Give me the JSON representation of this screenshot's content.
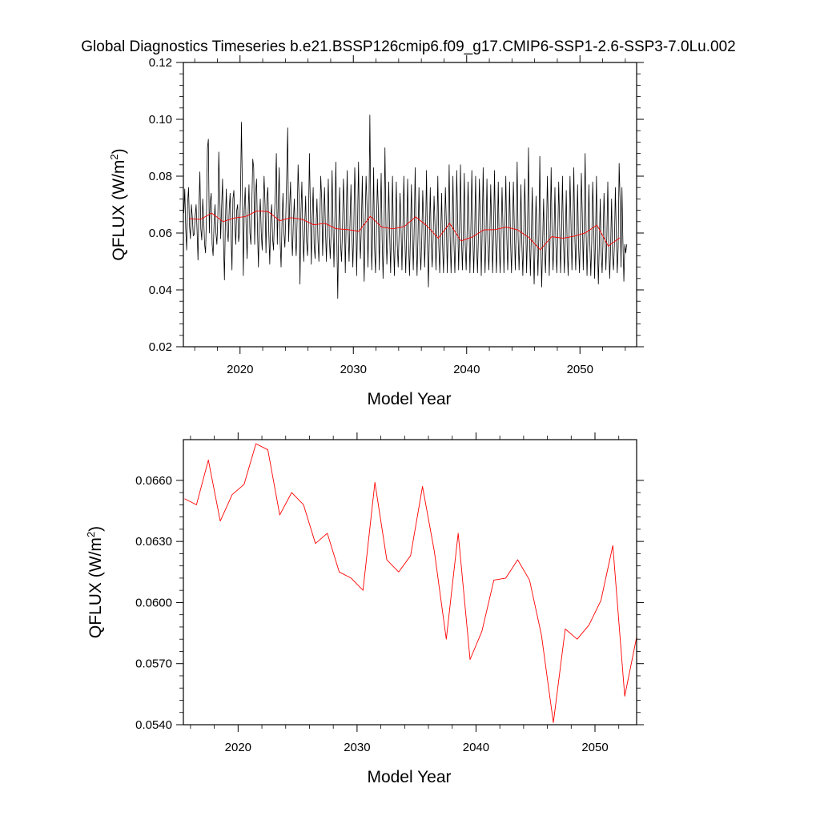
{
  "title": "Global Diagnostics Timeseries b.e21.BSSP126cmip6.f09_g17.CMIP6-SSP1-2.6-SSP3-7.0Lu.002",
  "colors": {
    "monthly": "#000000",
    "annual": "#ff0000",
    "axes": "#000000",
    "background": "#ffffff"
  },
  "chart_data": [
    {
      "type": "line",
      "xlabel": "Model Year",
      "ylabel": "QFLUX (W/m",
      "ylabel_superscript": "2",
      "ylabel_suffix": ")",
      "xlim": [
        2015,
        2055
      ],
      "ylim": [
        0.02,
        0.12
      ],
      "x_ticks": [
        2020,
        2030,
        2040,
        2050
      ],
      "x_tick_labels": [
        "2020",
        "2030",
        "2040",
        "2050"
      ],
      "y_ticks": [
        0.02,
        0.04,
        0.06,
        0.08,
        0.1,
        0.12
      ],
      "y_tick_labels": [
        "0.02",
        "0.04",
        "0.06",
        "0.08",
        "0.10",
        "0.12"
      ],
      "grid": false,
      "series": [
        {
          "color": "#000000",
          "x_start": 2015.04,
          "x_step": 0.0833333,
          "values": [
            0.067,
            0.0755,
            0.0615,
            0.054,
            0.0705,
            0.076,
            0.0625,
            0.058,
            0.07,
            0.0655,
            0.059,
            0.0595,
            0.066,
            0.07,
            0.061,
            0.0505,
            0.069,
            0.0815,
            0.0615,
            0.0575,
            0.072,
            0.065,
            0.056,
            0.053,
            0.067,
            0.09,
            0.093,
            0.06,
            0.071,
            0.074,
            0.056,
            0.052,
            0.063,
            0.07,
            0.06,
            0.056,
            0.065,
            0.0885,
            0.074,
            0.058,
            0.069,
            0.079,
            0.057,
            0.0435,
            0.064,
            0.0755,
            0.061,
            0.057,
            0.068,
            0.074,
            0.059,
            0.047,
            0.072,
            0.075,
            0.063,
            0.056,
            0.068,
            0.07,
            0.057,
            0.06,
            0.073,
            0.099,
            0.076,
            0.045,
            0.068,
            0.076,
            0.062,
            0.051,
            0.066,
            0.077,
            0.06,
            0.056,
            0.07,
            0.086,
            0.083,
            0.056,
            0.074,
            0.079,
            0.061,
            0.048,
            0.065,
            0.072,
            0.06,
            0.054,
            0.068,
            0.08,
            0.07,
            0.053,
            0.072,
            0.076,
            0.06,
            0.049,
            0.065,
            0.07,
            0.058,
            0.054,
            0.066,
            0.075,
            0.088,
            0.056,
            0.07,
            0.083,
            0.057,
            0.048,
            0.064,
            0.074,
            0.06,
            0.055,
            0.066,
            0.081,
            0.097,
            0.057,
            0.069,
            0.078,
            0.06,
            0.052,
            0.064,
            0.072,
            0.059,
            0.052,
            0.065,
            0.084,
            0.073,
            0.042,
            0.067,
            0.078,
            0.059,
            0.05,
            0.063,
            0.073,
            0.057,
            0.052,
            0.064,
            0.088,
            0.069,
            0.049,
            0.066,
            0.076,
            0.056,
            0.051,
            0.062,
            0.072,
            0.058,
            0.05,
            0.063,
            0.08,
            0.072,
            0.052,
            0.065,
            0.076,
            0.061,
            0.05,
            0.064,
            0.079,
            0.059,
            0.051,
            0.06,
            0.082,
            0.062,
            0.048,
            0.066,
            0.085,
            0.058,
            0.037,
            0.062,
            0.076,
            0.056,
            0.05,
            0.061,
            0.079,
            0.068,
            0.046,
            0.065,
            0.082,
            0.061,
            0.05,
            0.064,
            0.077,
            0.06,
            0.048,
            0.062,
            0.083,
            0.07,
            0.045,
            0.064,
            0.085,
            0.06,
            0.051,
            0.062,
            0.08,
            0.058,
            0.043,
            0.064,
            0.08,
            0.07,
            0.048,
            0.066,
            0.1015,
            0.067,
            0.047,
            0.06,
            0.083,
            0.055,
            0.046,
            0.062,
            0.079,
            0.068,
            0.047,
            0.065,
            0.081,
            0.058,
            0.044,
            0.06,
            0.09,
            0.064,
            0.049,
            0.06,
            0.078,
            0.06,
            0.046,
            0.063,
            0.08,
            0.057,
            0.045,
            0.061,
            0.078,
            0.056,
            0.048,
            0.06,
            0.074,
            0.062,
            0.047,
            0.062,
            0.08,
            0.059,
            0.046,
            0.06,
            0.079,
            0.056,
            0.045,
            0.059,
            0.077,
            0.06,
            0.047,
            0.062,
            0.083,
            0.058,
            0.045,
            0.059,
            0.076,
            0.055,
            0.047,
            0.058,
            0.075,
            0.064,
            0.048,
            0.06,
            0.082,
            0.057,
            0.041,
            0.059,
            0.076,
            0.056,
            0.048,
            0.058,
            0.073,
            0.063,
            0.047,
            0.06,
            0.08,
            0.056,
            0.046,
            0.059,
            0.074,
            0.056,
            0.046,
            0.059,
            0.076,
            0.064,
            0.046,
            0.061,
            0.084,
            0.059,
            0.046,
            0.059,
            0.08,
            0.057,
            0.046,
            0.059,
            0.082,
            0.065,
            0.047,
            0.062,
            0.084,
            0.059,
            0.047,
            0.06,
            0.081,
            0.056,
            0.047,
            0.06,
            0.078,
            0.063,
            0.046,
            0.062,
            0.082,
            0.059,
            0.046,
            0.06,
            0.08,
            0.056,
            0.046,
            0.059,
            0.079,
            0.064,
            0.045,
            0.061,
            0.083,
            0.06,
            0.046,
            0.059,
            0.079,
            0.056,
            0.047,
            0.058,
            0.077,
            0.062,
            0.046,
            0.06,
            0.082,
            0.06,
            0.046,
            0.058,
            0.078,
            0.056,
            0.046,
            0.059,
            0.076,
            0.062,
            0.046,
            0.061,
            0.08,
            0.059,
            0.047,
            0.059,
            0.078,
            0.057,
            0.046,
            0.059,
            0.078,
            0.062,
            0.047,
            0.061,
            0.085,
            0.059,
            0.047,
            0.059,
            0.077,
            0.056,
            0.045,
            0.06,
            0.079,
            0.064,
            0.046,
            0.061,
            0.09,
            0.06,
            0.045,
            0.059,
            0.076,
            0.056,
            0.042,
            0.057,
            0.073,
            0.06,
            0.045,
            0.059,
            0.087,
            0.056,
            0.041,
            0.057,
            0.072,
            0.055,
            0.046,
            0.059,
            0.08,
            0.064,
            0.045,
            0.06,
            0.083,
            0.059,
            0.047,
            0.058,
            0.076,
            0.056,
            0.046,
            0.059,
            0.078,
            0.063,
            0.046,
            0.06,
            0.08,
            0.058,
            0.046,
            0.058,
            0.075,
            0.055,
            0.045,
            0.059,
            0.08,
            0.064,
            0.047,
            0.061,
            0.083,
            0.06,
            0.047,
            0.059,
            0.077,
            0.056,
            0.046,
            0.06,
            0.081,
            0.066,
            0.047,
            0.063,
            0.088,
            0.061,
            0.045,
            0.059,
            0.077,
            0.056,
            0.045,
            0.057,
            0.078,
            0.065,
            0.044,
            0.058,
            0.08,
            0.056,
            0.042,
            0.056,
            0.072,
            0.053,
            0.046,
            0.058,
            0.074,
            0.06,
            0.047,
            0.059,
            0.078,
            0.056,
            0.044,
            0.055,
            0.072,
            0.052,
            0.047,
            0.056,
            0.076,
            0.06,
            0.046,
            0.055,
            0.0845,
            0.072,
            0.048,
            0.076,
            0.057,
            0.043,
            0.056,
            0.053,
            0.056
          ]
        },
        {
          "color": "#ff0000",
          "x": [
            2015.5,
            2016.5,
            2017.5,
            2018.5,
            2019.5,
            2020.5,
            2021.5,
            2022.5,
            2023.5,
            2024.5,
            2025.5,
            2026.5,
            2027.5,
            2028.5,
            2029.5,
            2030.5,
            2031.5,
            2032.5,
            2033.5,
            2034.5,
            2035.5,
            2036.5,
            2037.5,
            2038.5,
            2039.5,
            2040.5,
            2041.5,
            2042.5,
            2043.5,
            2044.5,
            2045.5,
            2046.5,
            2047.5,
            2048.5,
            2049.5,
            2050.5,
            2051.5,
            2052.5,
            2053.5
          ],
          "values": [
            0.0651,
            0.0648,
            0.067,
            0.064,
            0.0653,
            0.0658,
            0.0678,
            0.0675,
            0.0643,
            0.0654,
            0.0648,
            0.0629,
            0.0634,
            0.0615,
            0.0612,
            0.0606,
            0.0659,
            0.0621,
            0.0615,
            0.0623,
            0.0657,
            0.0625,
            0.0582,
            0.0634,
            0.0572,
            0.0586,
            0.0611,
            0.0612,
            0.0621,
            0.0611,
            0.0584,
            0.0541,
            0.0587,
            0.0582,
            0.0589,
            0.0601,
            0.0628,
            0.0554,
            0.0583
          ]
        }
      ]
    },
    {
      "type": "line",
      "xlabel": "Model Year",
      "ylabel": "QFLUX (W/m",
      "ylabel_superscript": "2",
      "ylabel_suffix": ")",
      "xlim": [
        2015.4,
        2053.5
      ],
      "ylim": [
        0.054,
        0.068
      ],
      "x_ticks": [
        2020,
        2030,
        2040,
        2050
      ],
      "x_tick_labels": [
        "2020",
        "2030",
        "2040",
        "2050"
      ],
      "y_ticks": [
        0.054,
        0.057,
        0.06,
        0.063,
        0.066
      ],
      "y_tick_labels": [
        "0.0540",
        "0.0570",
        "0.0600",
        "0.0630",
        "0.0660"
      ],
      "grid": false,
      "series": [
        {
          "color": "#ff0000",
          "x": [
            2015.5,
            2016.5,
            2017.5,
            2018.5,
            2019.5,
            2020.5,
            2021.5,
            2022.5,
            2023.5,
            2024.5,
            2025.5,
            2026.5,
            2027.5,
            2028.5,
            2029.5,
            2030.5,
            2031.5,
            2032.5,
            2033.5,
            2034.5,
            2035.5,
            2036.5,
            2037.5,
            2038.5,
            2039.5,
            2040.5,
            2041.5,
            2042.5,
            2043.5,
            2044.5,
            2045.5,
            2046.5,
            2047.5,
            2048.5,
            2049.5,
            2050.5,
            2051.5,
            2052.5,
            2053.5
          ],
          "values": [
            0.0651,
            0.0648,
            0.067,
            0.064,
            0.0653,
            0.0658,
            0.0678,
            0.0675,
            0.0643,
            0.0654,
            0.0648,
            0.0629,
            0.0634,
            0.0615,
            0.0612,
            0.0606,
            0.0659,
            0.0621,
            0.0615,
            0.0623,
            0.0657,
            0.0625,
            0.0582,
            0.0634,
            0.0572,
            0.0586,
            0.0611,
            0.0612,
            0.0621,
            0.0611,
            0.0584,
            0.0541,
            0.0587,
            0.0582,
            0.0589,
            0.0601,
            0.0628,
            0.0554,
            0.0583
          ]
        }
      ]
    }
  ]
}
